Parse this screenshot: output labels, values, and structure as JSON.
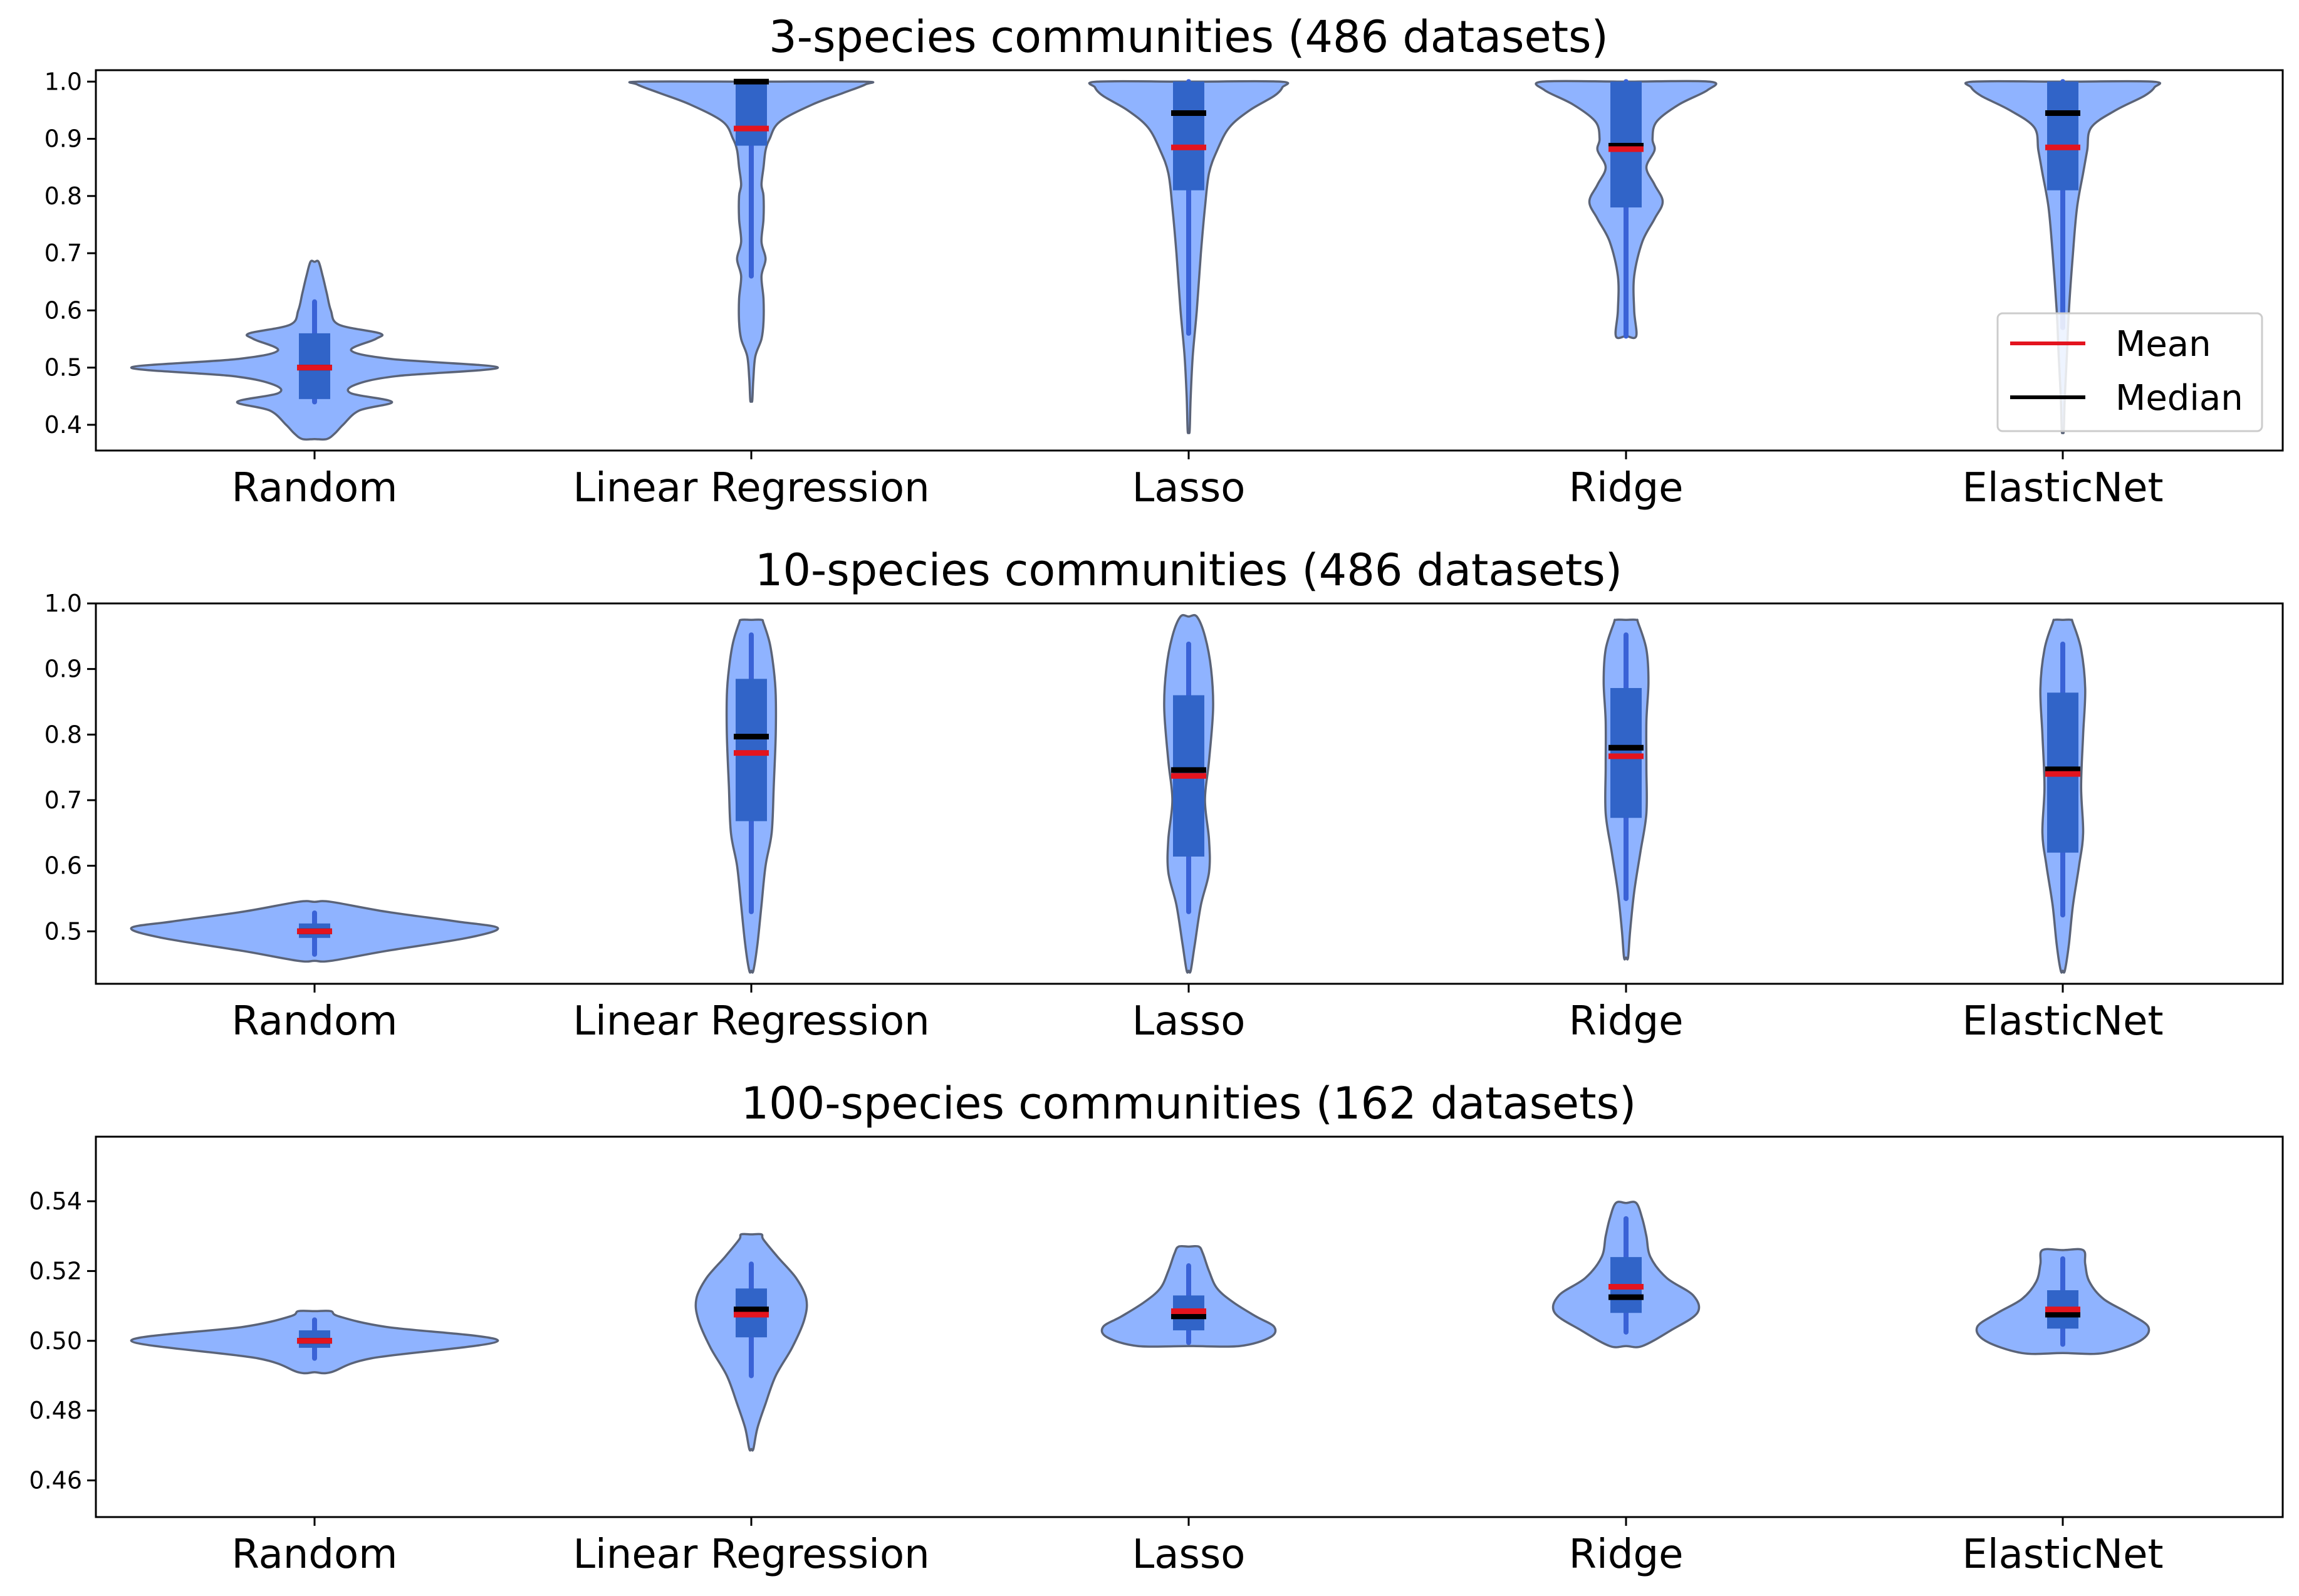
{
  "legend": {
    "mean": "Mean",
    "median": "Median"
  },
  "colors": {
    "violin_fill": "#8fb3ff",
    "violin_edge": "#5a6378",
    "box": "#3164c8",
    "whisker": "#3a62d6",
    "mean": "#e3141e",
    "median": "#000000"
  },
  "chart_data": [
    {
      "type": "violin",
      "title": "3-species communities (486 datasets)",
      "categories": [
        "Random",
        "Linear Regression",
        "Lasso",
        "Ridge",
        "ElasticNet"
      ],
      "ylim": [
        0.355,
        1.02
      ],
      "yticks": [
        "0.4",
        "0.5",
        "0.6",
        "0.7",
        "0.8",
        "0.9",
        "1.0"
      ],
      "legend_position": "lower-right",
      "series": [
        {
          "min": 0.375,
          "max": 0.685,
          "q1": 0.445,
          "median": 0.5,
          "q3": 0.56,
          "mean": 0.5,
          "whisker_low": 0.44,
          "whisker_high": 0.615,
          "profile": [
            [
              0.375,
              0.06
            ],
            [
              0.385,
              0.1
            ],
            [
              0.4,
              0.14
            ],
            [
              0.425,
              0.22
            ],
            [
              0.44,
              0.38
            ],
            [
              0.455,
              0.18
            ],
            [
              0.47,
              0.2
            ],
            [
              0.485,
              0.4
            ],
            [
              0.5,
              0.9
            ],
            [
              0.515,
              0.38
            ],
            [
              0.53,
              0.18
            ],
            [
              0.55,
              0.3
            ],
            [
              0.56,
              0.32
            ],
            [
              0.575,
              0.12
            ],
            [
              0.6,
              0.08
            ],
            [
              0.63,
              0.06
            ],
            [
              0.66,
              0.04
            ],
            [
              0.685,
              0.02
            ]
          ]
        },
        {
          "min": 0.443,
          "max": 1.0,
          "q1": 0.888,
          "median": 1.0,
          "q3": 1.0,
          "mean": 0.918,
          "whisker_low": 0.66,
          "whisker_high": 1.0,
          "profile": [
            [
              0.443,
              0.005
            ],
            [
              0.48,
              0.01
            ],
            [
              0.52,
              0.02
            ],
            [
              0.55,
              0.05
            ],
            [
              0.58,
              0.06
            ],
            [
              0.62,
              0.06
            ],
            [
              0.66,
              0.05
            ],
            [
              0.69,
              0.07
            ],
            [
              0.72,
              0.05
            ],
            [
              0.76,
              0.06
            ],
            [
              0.8,
              0.06
            ],
            [
              0.82,
              0.05
            ],
            [
              0.85,
              0.06
            ],
            [
              0.88,
              0.07
            ],
            [
              0.9,
              0.09
            ],
            [
              0.93,
              0.14
            ],
            [
              0.96,
              0.3
            ],
            [
              0.98,
              0.45
            ],
            [
              0.995,
              0.56
            ],
            [
              1.0,
              0.55
            ]
          ]
        },
        {
          "min": 0.39,
          "max": 1.0,
          "q1": 0.81,
          "median": 0.945,
          "q3": 1.0,
          "mean": 0.885,
          "whisker_low": 0.56,
          "whisker_high": 1.0,
          "profile": [
            [
              0.39,
              0.005
            ],
            [
              0.45,
              0.01
            ],
            [
              0.52,
              0.02
            ],
            [
              0.6,
              0.04
            ],
            [
              0.7,
              0.06
            ],
            [
              0.78,
              0.08
            ],
            [
              0.84,
              0.1
            ],
            [
              0.88,
              0.14
            ],
            [
              0.92,
              0.2
            ],
            [
              0.95,
              0.3
            ],
            [
              0.975,
              0.42
            ],
            [
              0.99,
              0.46
            ],
            [
              1.0,
              0.45
            ]
          ]
        },
        {
          "min": 0.555,
          "max": 1.0,
          "q1": 0.78,
          "median": 0.888,
          "q3": 1.0,
          "mean": 0.882,
          "whisker_low": 0.555,
          "whisker_high": 1.0,
          "profile": [
            [
              0.555,
              0.05
            ],
            [
              0.6,
              0.04
            ],
            [
              0.66,
              0.04
            ],
            [
              0.72,
              0.08
            ],
            [
              0.76,
              0.14
            ],
            [
              0.79,
              0.18
            ],
            [
              0.82,
              0.14
            ],
            [
              0.85,
              0.1
            ],
            [
              0.88,
              0.14
            ],
            [
              0.9,
              0.13
            ],
            [
              0.93,
              0.15
            ],
            [
              0.96,
              0.26
            ],
            [
              0.985,
              0.4
            ],
            [
              1.0,
              0.41
            ]
          ]
        },
        {
          "min": 0.39,
          "max": 1.0,
          "q1": 0.81,
          "median": 0.945,
          "q3": 1.0,
          "mean": 0.885,
          "whisker_low": 0.57,
          "whisker_high": 1.0,
          "profile": [
            [
              0.39,
              0.005
            ],
            [
              0.45,
              0.01
            ],
            [
              0.52,
              0.02
            ],
            [
              0.6,
              0.03
            ],
            [
              0.7,
              0.05
            ],
            [
              0.78,
              0.07
            ],
            [
              0.84,
              0.1
            ],
            [
              0.88,
              0.12
            ],
            [
              0.92,
              0.14
            ],
            [
              0.95,
              0.26
            ],
            [
              0.975,
              0.4
            ],
            [
              0.99,
              0.45
            ],
            [
              1.0,
              0.44
            ]
          ]
        }
      ]
    },
    {
      "type": "violin",
      "title": "10-species communities (486 datasets)",
      "categories": [
        "Random",
        "Linear Regression",
        "Lasso",
        "Ridge",
        "ElasticNet"
      ],
      "ylim": [
        0.42,
        1.0
      ],
      "yticks": [
        "0.5",
        "0.6",
        "0.7",
        "0.8",
        "0.9",
        "1.0"
      ],
      "series": [
        {
          "min": 0.455,
          "max": 0.545,
          "q1": 0.49,
          "median": 0.5,
          "q3": 0.512,
          "mean": 0.5,
          "whisker_low": 0.465,
          "whisker_high": 0.528,
          "profile": [
            [
              0.455,
              0.08
            ],
            [
              0.47,
              0.35
            ],
            [
              0.49,
              0.75
            ],
            [
              0.505,
              0.9
            ],
            [
              0.515,
              0.7
            ],
            [
              0.53,
              0.35
            ],
            [
              0.545,
              0.08
            ]
          ]
        },
        {
          "min": 0.44,
          "max": 0.975,
          "q1": 0.668,
          "median": 0.797,
          "q3": 0.885,
          "mean": 0.772,
          "whisker_low": 0.53,
          "whisker_high": 0.952,
          "profile": [
            [
              0.44,
              0.01
            ],
            [
              0.48,
              0.03
            ],
            [
              0.54,
              0.05
            ],
            [
              0.6,
              0.07
            ],
            [
              0.65,
              0.1
            ],
            [
              0.72,
              0.11
            ],
            [
              0.8,
              0.12
            ],
            [
              0.86,
              0.12
            ],
            [
              0.9,
              0.11
            ],
            [
              0.94,
              0.09
            ],
            [
              0.97,
              0.06
            ],
            [
              0.975,
              0.05
            ]
          ]
        },
        {
          "min": 0.44,
          "max": 0.98,
          "q1": 0.614,
          "median": 0.746,
          "q3": 0.86,
          "mean": 0.737,
          "whisker_low": 0.53,
          "whisker_high": 0.938,
          "profile": [
            [
              0.44,
              0.01
            ],
            [
              0.48,
              0.03
            ],
            [
              0.54,
              0.06
            ],
            [
              0.59,
              0.1
            ],
            [
              0.64,
              0.1
            ],
            [
              0.7,
              0.08
            ],
            [
              0.76,
              0.1
            ],
            [
              0.84,
              0.12
            ],
            [
              0.9,
              0.11
            ],
            [
              0.95,
              0.08
            ],
            [
              0.98,
              0.04
            ]
          ]
        },
        {
          "min": 0.46,
          "max": 0.975,
          "q1": 0.673,
          "median": 0.78,
          "q3": 0.871,
          "mean": 0.767,
          "whisker_low": 0.55,
          "whisker_high": 0.952,
          "profile": [
            [
              0.46,
              0.01
            ],
            [
              0.5,
              0.02
            ],
            [
              0.56,
              0.04
            ],
            [
              0.62,
              0.07
            ],
            [
              0.68,
              0.1
            ],
            [
              0.75,
              0.1
            ],
            [
              0.82,
              0.1
            ],
            [
              0.88,
              0.11
            ],
            [
              0.93,
              0.1
            ],
            [
              0.97,
              0.06
            ],
            [
              0.975,
              0.05
            ]
          ]
        },
        {
          "min": 0.44,
          "max": 0.975,
          "q1": 0.62,
          "median": 0.747,
          "q3": 0.864,
          "mean": 0.74,
          "whisker_low": 0.525,
          "whisker_high": 0.938,
          "profile": [
            [
              0.44,
              0.01
            ],
            [
              0.48,
              0.03
            ],
            [
              0.54,
              0.05
            ],
            [
              0.6,
              0.08
            ],
            [
              0.65,
              0.1
            ],
            [
              0.72,
              0.09
            ],
            [
              0.8,
              0.1
            ],
            [
              0.87,
              0.11
            ],
            [
              0.93,
              0.09
            ],
            [
              0.97,
              0.05
            ],
            [
              0.975,
              0.04
            ]
          ]
        }
      ]
    },
    {
      "type": "violin",
      "title": "100-species communities (162 datasets)",
      "categories": [
        "Random",
        "Linear Regression",
        "Lasso",
        "Ridge",
        "ElasticNet"
      ],
      "ylim": [
        0.4495,
        0.5585
      ],
      "yticks": [
        "0.46",
        "0.48",
        "0.50",
        "0.52",
        "0.54"
      ],
      "series": [
        {
          "min": 0.491,
          "max": 0.5085,
          "q1": 0.498,
          "median": 0.5,
          "q3": 0.503,
          "mean": 0.5,
          "whisker_low": 0.495,
          "whisker_high": 0.506,
          "profile": [
            [
              0.491,
              0.08
            ],
            [
              0.495,
              0.28
            ],
            [
              0.5,
              0.9
            ],
            [
              0.504,
              0.35
            ],
            [
              0.507,
              0.12
            ],
            [
              0.5085,
              0.08
            ]
          ]
        },
        {
          "min": 0.469,
          "max": 0.5305,
          "q1": 0.501,
          "median": 0.509,
          "q3": 0.515,
          "mean": 0.5075,
          "whisker_low": 0.49,
          "whisker_high": 0.522,
          "profile": [
            [
              0.469,
              0.01
            ],
            [
              0.475,
              0.03
            ],
            [
              0.482,
              0.07
            ],
            [
              0.49,
              0.12
            ],
            [
              0.498,
              0.2
            ],
            [
              0.506,
              0.26
            ],
            [
              0.512,
              0.27
            ],
            [
              0.518,
              0.22
            ],
            [
              0.524,
              0.13
            ],
            [
              0.529,
              0.06
            ],
            [
              0.5305,
              0.05
            ]
          ]
        },
        {
          "min": 0.4985,
          "max": 0.527,
          "q1": 0.503,
          "median": 0.507,
          "q3": 0.513,
          "mean": 0.5085,
          "whisker_low": 0.4995,
          "whisker_high": 0.5215,
          "profile": [
            [
              0.4985,
              0.25
            ],
            [
              0.501,
              0.4
            ],
            [
              0.504,
              0.42
            ],
            [
              0.507,
              0.33
            ],
            [
              0.511,
              0.22
            ],
            [
              0.515,
              0.14
            ],
            [
              0.52,
              0.1
            ],
            [
              0.525,
              0.07
            ],
            [
              0.527,
              0.05
            ]
          ]
        },
        {
          "min": 0.4985,
          "max": 0.5395,
          "q1": 0.508,
          "median": 0.5125,
          "q3": 0.524,
          "mean": 0.5155,
          "whisker_low": 0.5025,
          "whisker_high": 0.535,
          "profile": [
            [
              0.4985,
              0.08
            ],
            [
              0.503,
              0.22
            ],
            [
              0.508,
              0.35
            ],
            [
              0.513,
              0.33
            ],
            [
              0.518,
              0.2
            ],
            [
              0.524,
              0.12
            ],
            [
              0.53,
              0.1
            ],
            [
              0.535,
              0.08
            ],
            [
              0.5395,
              0.05
            ]
          ]
        },
        {
          "min": 0.4965,
          "max": 0.526,
          "q1": 0.5035,
          "median": 0.5075,
          "q3": 0.5145,
          "mean": 0.509,
          "whisker_low": 0.499,
          "whisker_high": 0.5235,
          "profile": [
            [
              0.4965,
              0.2
            ],
            [
              0.5,
              0.38
            ],
            [
              0.504,
              0.42
            ],
            [
              0.508,
              0.32
            ],
            [
              0.512,
              0.2
            ],
            [
              0.517,
              0.13
            ],
            [
              0.522,
              0.11
            ],
            [
              0.526,
              0.1
            ]
          ]
        }
      ]
    }
  ]
}
